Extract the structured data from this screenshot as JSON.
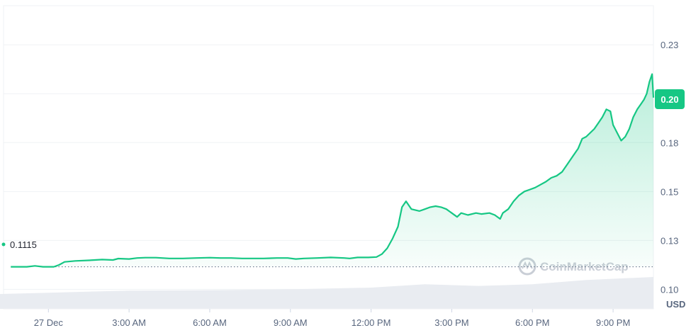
{
  "chart_data": {
    "type": "area",
    "currency": "USD",
    "start_price_label": "0.1115",
    "current_price_label": "0.20",
    "ylim": [
      0.09,
      0.245
    ],
    "y_ticks": [
      {
        "value": 0.1,
        "label": "0.10"
      },
      {
        "value": 0.125,
        "label": "0.13"
      },
      {
        "value": 0.15,
        "label": "0.15"
      },
      {
        "value": 0.175,
        "label": "0.18"
      },
      {
        "value": 0.2,
        "label": "0.20"
      },
      {
        "value": 0.225,
        "label": "0.23"
      }
    ],
    "x_ticks": [
      "27 Dec",
      "3:00 AM",
      "6:00 AM",
      "9:00 AM",
      "12:00 PM",
      "3:00 PM",
      "6:00 PM",
      "9:00 PM"
    ],
    "x_tick_hours": [
      0,
      3,
      6,
      9,
      12,
      15,
      18,
      21
    ],
    "xlim_hours": [
      -1.8,
      22.5
    ],
    "series": [
      {
        "color": "#16c784",
        "points": [
          [
            -1.4,
            0.1115
          ],
          [
            -0.8,
            0.1115
          ],
          [
            -0.5,
            0.112
          ],
          [
            -0.2,
            0.1115
          ],
          [
            0.2,
            0.1115
          ],
          [
            0.4,
            0.1125
          ],
          [
            0.6,
            0.114
          ],
          [
            1.0,
            0.1145
          ],
          [
            1.5,
            0.1148
          ],
          [
            2.0,
            0.1152
          ],
          [
            2.4,
            0.115
          ],
          [
            2.6,
            0.1157
          ],
          [
            3.0,
            0.1155
          ],
          [
            3.3,
            0.116
          ],
          [
            3.6,
            0.1162
          ],
          [
            4.0,
            0.1162
          ],
          [
            4.5,
            0.1158
          ],
          [
            5.0,
            0.1158
          ],
          [
            5.5,
            0.116
          ],
          [
            6.0,
            0.1162
          ],
          [
            6.4,
            0.116
          ],
          [
            6.8,
            0.116
          ],
          [
            7.2,
            0.1158
          ],
          [
            7.6,
            0.1158
          ],
          [
            8.0,
            0.1158
          ],
          [
            8.5,
            0.116
          ],
          [
            8.9,
            0.116
          ],
          [
            9.2,
            0.1155
          ],
          [
            9.5,
            0.1158
          ],
          [
            10.0,
            0.116
          ],
          [
            10.5,
            0.1163
          ],
          [
            11.0,
            0.116
          ],
          [
            11.2,
            0.1158
          ],
          [
            11.5,
            0.1163
          ],
          [
            11.9,
            0.1163
          ],
          [
            12.2,
            0.1165
          ],
          [
            12.4,
            0.118
          ],
          [
            12.6,
            0.121
          ],
          [
            12.8,
            0.126
          ],
          [
            13.0,
            0.132
          ],
          [
            13.15,
            0.142
          ],
          [
            13.3,
            0.145
          ],
          [
            13.5,
            0.141
          ],
          [
            13.8,
            0.14
          ],
          [
            14.0,
            0.141
          ],
          [
            14.2,
            0.142
          ],
          [
            14.4,
            0.1425
          ],
          [
            14.6,
            0.142
          ],
          [
            14.8,
            0.141
          ],
          [
            15.0,
            0.139
          ],
          [
            15.2,
            0.137
          ],
          [
            15.35,
            0.139
          ],
          [
            15.6,
            0.138
          ],
          [
            15.9,
            0.139
          ],
          [
            16.1,
            0.1385
          ],
          [
            16.4,
            0.139
          ],
          [
            16.6,
            0.138
          ],
          [
            16.8,
            0.136
          ],
          [
            16.9,
            0.139
          ],
          [
            17.1,
            0.141
          ],
          [
            17.3,
            0.145
          ],
          [
            17.5,
            0.148
          ],
          [
            17.7,
            0.15
          ],
          [
            17.9,
            0.151
          ],
          [
            18.1,
            0.152
          ],
          [
            18.3,
            0.1535
          ],
          [
            18.5,
            0.155
          ],
          [
            18.7,
            0.157
          ],
          [
            18.9,
            0.158
          ],
          [
            19.1,
            0.16
          ],
          [
            19.3,
            0.164
          ],
          [
            19.5,
            0.168
          ],
          [
            19.7,
            0.172
          ],
          [
            19.85,
            0.177
          ],
          [
            20.0,
            0.178
          ],
          [
            20.15,
            0.18
          ],
          [
            20.3,
            0.182
          ],
          [
            20.45,
            0.185
          ],
          [
            20.6,
            0.188
          ],
          [
            20.75,
            0.192
          ],
          [
            20.9,
            0.191
          ],
          [
            21.0,
            0.184
          ],
          [
            21.15,
            0.18
          ],
          [
            21.3,
            0.176
          ],
          [
            21.45,
            0.178
          ],
          [
            21.6,
            0.182
          ],
          [
            21.75,
            0.188
          ],
          [
            21.9,
            0.192
          ],
          [
            22.05,
            0.195
          ],
          [
            22.15,
            0.197
          ],
          [
            22.25,
            0.2
          ],
          [
            22.35,
            0.206
          ],
          [
            22.45,
            0.21
          ],
          [
            22.5,
            0.198
          ]
        ]
      }
    ],
    "volume_series": {
      "color": "#e9ecf1",
      "points": [
        [
          -1.8,
          0.35
        ],
        [
          0,
          0.38
        ],
        [
          3,
          0.43
        ],
        [
          6,
          0.44
        ],
        [
          9,
          0.46
        ],
        [
          12,
          0.5
        ],
        [
          14,
          0.58
        ],
        [
          16,
          0.54
        ],
        [
          18,
          0.58
        ],
        [
          20,
          0.68
        ],
        [
          22.5,
          0.75
        ]
      ]
    }
  },
  "watermark": {
    "text": "CoinMarketCap",
    "icon": "coinmarketcap-logo-icon"
  },
  "unit_label": "USD"
}
